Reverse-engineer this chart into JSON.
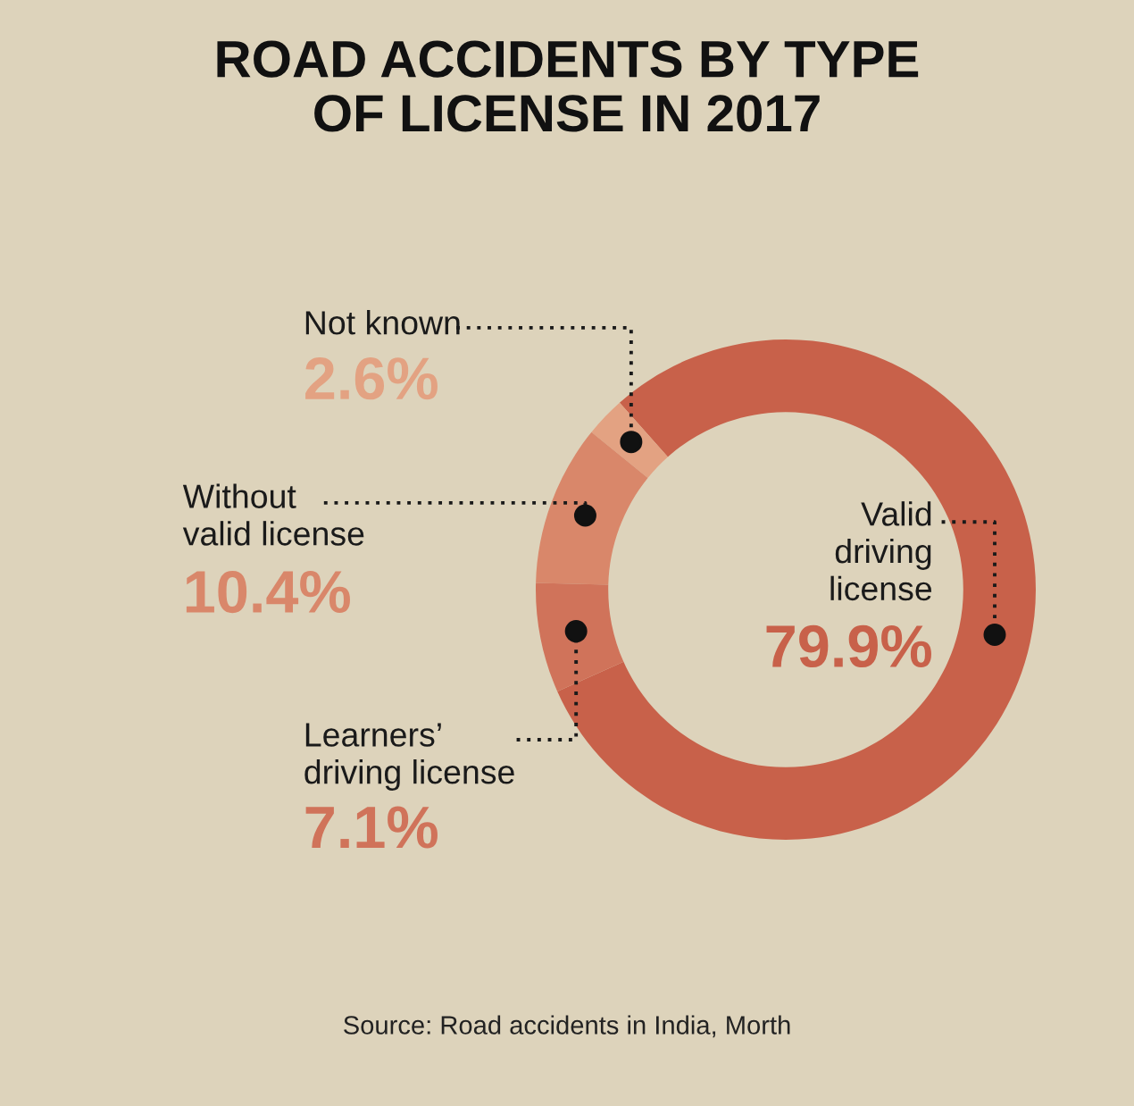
{
  "chart_data": {
    "type": "donut",
    "title": "ROAD ACCIDENTS BY TYPE\nOF LICENSE IN 2017",
    "categories": [
      "Valid\ndriving\nlicense",
      "Not known",
      "Without\nvalid license",
      "Learners’\ndriving license"
    ],
    "values": [
      79.9,
      2.6,
      10.4,
      7.1
    ],
    "value_labels": [
      "79.9%",
      "2.6%",
      "10.4%",
      "7.1%"
    ],
    "colors": [
      "#c8614a",
      "#e3a282",
      "#d9876a",
      "#d0735a"
    ],
    "annotations": [
      "Source: Road accidents in India, Morth"
    ]
  }
}
